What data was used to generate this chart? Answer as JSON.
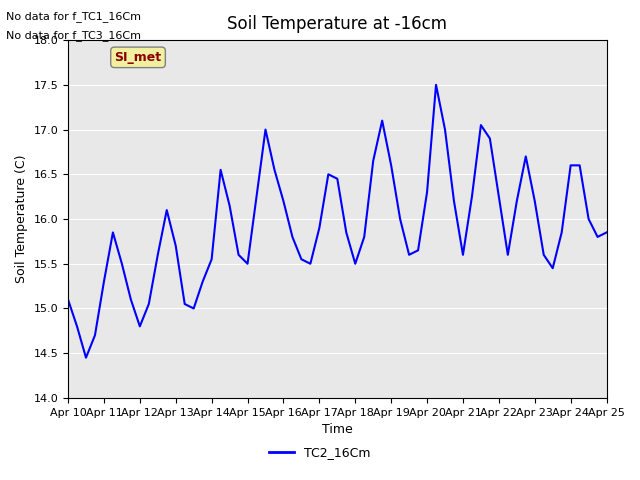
{
  "title": "Soil Temperature at -16cm",
  "xlabel": "Time",
  "ylabel": "Soil Temperature (C)",
  "ylim": [
    14.0,
    18.0
  ],
  "yticks": [
    14.0,
    14.5,
    15.0,
    15.5,
    16.0,
    16.5,
    17.0,
    17.5,
    18.0
  ],
  "line_color": "#0000ff",
  "background_color": "#e8e8e8",
  "plot_bg_color": "#e8e8e8",
  "no_data_text1": "No data for f_TC1_16Cm",
  "no_data_text2": "No data for f_TC3_16Cm",
  "legend_label": "TC2_16Cm",
  "si_met_label": "SI_met",
  "x_labels": [
    "Apr 10",
    "Apr 11",
    "Apr 12",
    "Apr 13",
    "Apr 14",
    "Apr 15",
    "Apr 16",
    "Apr 17",
    "Apr 18",
    "Apr 19",
    "Apr 20",
    "Apr 21",
    "Apr 22",
    "Apr 23",
    "Apr 24",
    "Apr 25"
  ],
  "data_x": [
    0,
    0.25,
    0.5,
    0.75,
    1.0,
    1.25,
    1.5,
    1.75,
    2.0,
    2.25,
    2.5,
    2.75,
    3.0,
    3.25,
    3.5,
    3.75,
    4.0,
    4.25,
    4.5,
    4.75,
    5.0,
    5.25,
    5.5,
    5.75,
    6.0,
    6.25,
    6.5,
    6.75,
    7.0,
    7.25,
    7.5,
    7.75,
    8.0,
    8.25,
    8.5,
    8.75,
    9.0,
    9.25,
    9.5,
    9.75,
    10.0,
    10.25,
    10.5,
    10.75,
    11.0,
    11.25,
    11.5,
    11.75,
    12.0,
    12.25,
    12.5,
    12.75,
    13.0,
    13.25,
    13.5,
    13.75,
    14.0,
    14.25,
    14.5,
    14.75,
    15.0
  ],
  "data_y": [
    15.1,
    14.8,
    14.45,
    14.7,
    15.3,
    15.85,
    15.5,
    15.1,
    14.8,
    15.05,
    15.6,
    16.1,
    15.7,
    15.05,
    15.0,
    15.3,
    15.55,
    16.55,
    16.15,
    15.6,
    15.5,
    16.25,
    17.0,
    16.55,
    16.2,
    15.8,
    15.55,
    15.5,
    15.9,
    16.5,
    16.45,
    15.85,
    15.5,
    15.8,
    16.65,
    17.1,
    16.6,
    16.0,
    15.6,
    15.65,
    16.3,
    17.5,
    17.0,
    16.2,
    15.6,
    16.25,
    17.05,
    16.9,
    16.25,
    15.6,
    16.2,
    16.7,
    16.2,
    15.6,
    15.45,
    15.85,
    16.6,
    16.6,
    16.0,
    15.8,
    15.85
  ],
  "xtick_positions": [
    0,
    1,
    2,
    3,
    4,
    5,
    6,
    7,
    8,
    9,
    10,
    11,
    12,
    13,
    14,
    15
  ]
}
